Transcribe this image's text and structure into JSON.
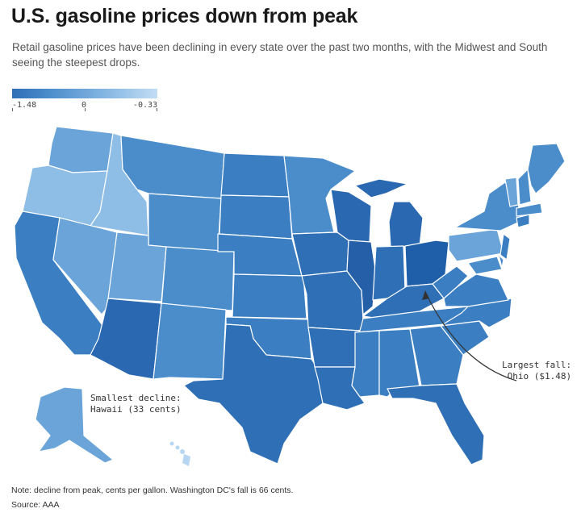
{
  "header": {
    "title": "U.S. gasoline prices down from peak",
    "subtitle": "Retail gasoline prices have been declining in every state over the past two months, with the Midwest and South seeing the steepest drops."
  },
  "legend": {
    "min_label": "-1.48",
    "mid_label": "0",
    "max_label": "-0.33",
    "color_low": "#2f6db5",
    "color_high": "#c3ddf4"
  },
  "annotations": {
    "smallest": "Smallest decline:",
    "smallest_detail": "Hawaii (33 cents)",
    "largest": "Largest fall:",
    "largest_detail": "Ohio ($1.48)"
  },
  "footer": {
    "note": "Note: decline from peak, cents per gallon. Washington DC's fall is 66 cents.",
    "source": "Source: AAA"
  },
  "colors": {
    "darkest": "#1f5ea8",
    "dark": "#2e6fb6",
    "mid_dark": "#3b7fc2",
    "mid": "#4b8dcb",
    "light": "#6aa4d8",
    "lighter": "#8ebde6",
    "lightest": "#b7d6f1"
  }
}
